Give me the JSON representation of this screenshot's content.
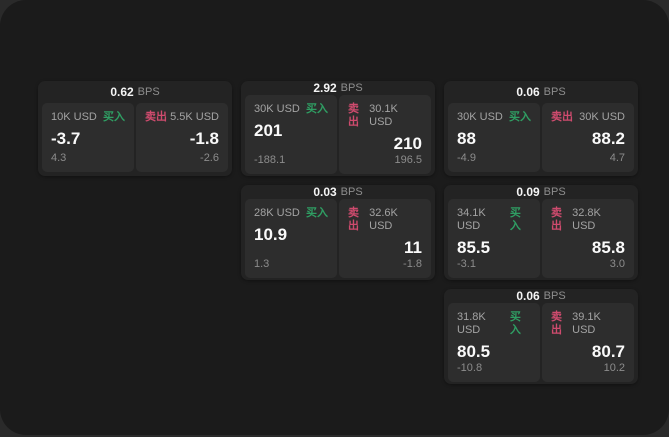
{
  "labels": {
    "bps_unit": "BPS",
    "buy": "买入",
    "sell": "卖出"
  },
  "colors": {
    "buy_green": "#2f9e63",
    "sell_rose": "#cf4b6e",
    "window_bg": "#1b1b1b",
    "card_bg": "#232323",
    "panel_bg": "#2d2d2d"
  },
  "cards": [
    {
      "col": 1,
      "row": 1,
      "bps_value": "0.62",
      "bps_unit": "BPS",
      "buy": {
        "amount": "10K USD",
        "side": "买入",
        "price": "-3.7",
        "delta": "4.3"
      },
      "sell": {
        "amount": "5.5K USD",
        "side": "卖出",
        "price": "-1.8",
        "delta": "-2.6"
      }
    },
    {
      "col": 2,
      "row": 1,
      "bps_value": "2.92",
      "bps_unit": "BPS",
      "buy": {
        "amount": "30K USD",
        "side": "买入",
        "price": "201",
        "delta": "-188.1"
      },
      "sell": {
        "amount": "30.1K USD",
        "side": "卖出",
        "price": "210",
        "delta": "196.5"
      }
    },
    {
      "col": 3,
      "row": 1,
      "bps_value": "0.06",
      "bps_unit": "BPS",
      "buy": {
        "amount": "30K USD",
        "side": "买入",
        "price": "88",
        "delta": "-4.9"
      },
      "sell": {
        "amount": "30K USD",
        "side": "卖出",
        "price": "88.2",
        "delta": "4.7"
      }
    },
    {
      "col": 2,
      "row": 2,
      "bps_value": "0.03",
      "bps_unit": "BPS",
      "buy": {
        "amount": "28K USD",
        "side": "买入",
        "price": "10.9",
        "delta": "1.3"
      },
      "sell": {
        "amount": "32.6K USD",
        "side": "卖出",
        "price": "11",
        "delta": "-1.8"
      }
    },
    {
      "col": 3,
      "row": 2,
      "bps_value": "0.09",
      "bps_unit": "BPS",
      "buy": {
        "amount": "34.1K USD",
        "side": "买入",
        "price": "85.5",
        "delta": "-3.1"
      },
      "sell": {
        "amount": "32.8K USD",
        "side": "卖出",
        "price": "85.8",
        "delta": "3.0"
      }
    },
    {
      "col": 3,
      "row": 3,
      "bps_value": "0.06",
      "bps_unit": "BPS",
      "buy": {
        "amount": "31.8K USD",
        "side": "买入",
        "price": "80.5",
        "delta": "-10.8"
      },
      "sell": {
        "amount": "39.1K USD",
        "side": "卖出",
        "price": "80.7",
        "delta": "10.2"
      }
    }
  ]
}
